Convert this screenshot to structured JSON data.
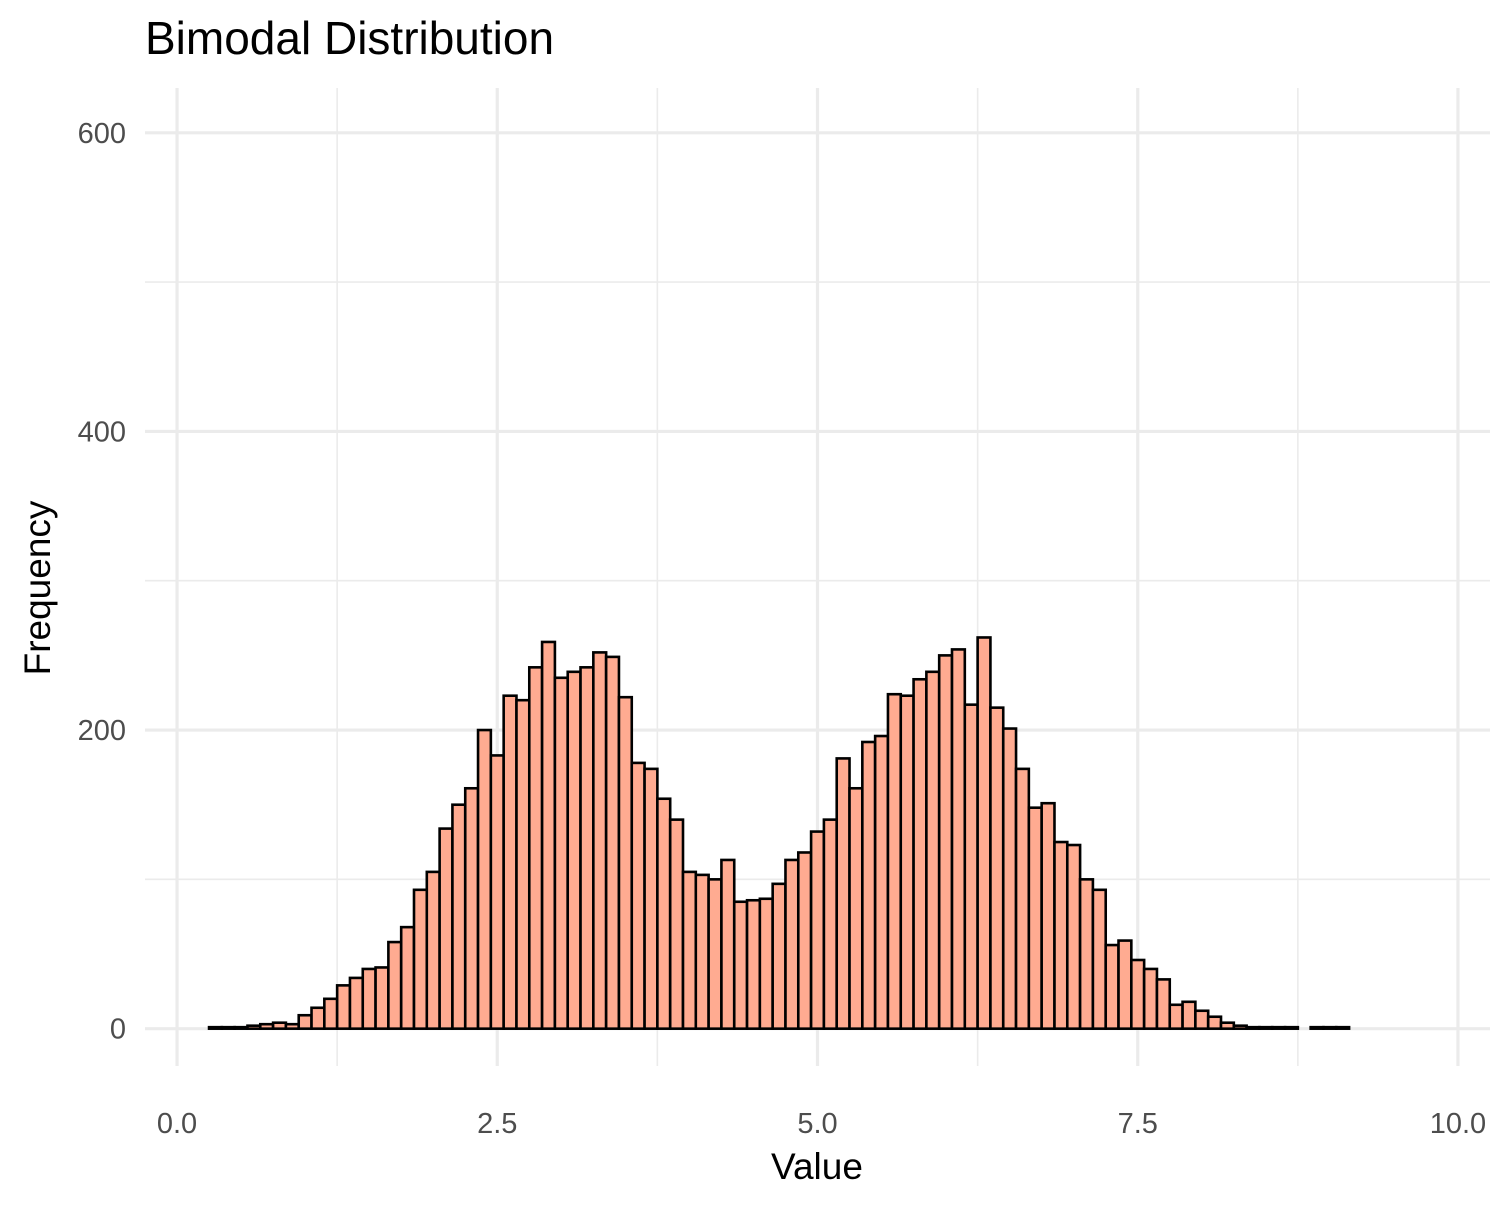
{
  "chart_data": {
    "type": "bar",
    "title": "Bimodal Distribution",
    "xlabel": "Value",
    "ylabel": "Frequency",
    "xlim": [
      -0.25,
      10.25
    ],
    "ylim": [
      -25,
      630
    ],
    "x_ticks": [
      0,
      2.5,
      5,
      7.5,
      10
    ],
    "x_tick_labels": [
      "0.0",
      "2.5",
      "5.0",
      "7.5",
      "10.0"
    ],
    "y_ticks": [
      0,
      200,
      400,
      600
    ],
    "y_tick_labels": [
      "0",
      "200",
      "400",
      "600"
    ],
    "grid": true,
    "bar_color": "#FFAB91",
    "bar_edge_color": "#000000",
    "bin_start": 0.05,
    "bin_width": 0.1,
    "values": [
      0,
      0,
      1,
      1,
      1,
      2,
      3,
      4,
      3,
      9,
      14,
      20,
      29,
      34,
      40,
      41,
      58,
      68,
      93,
      105,
      134,
      150,
      161,
      200,
      183,
      223,
      220,
      242,
      259,
      235,
      239,
      242,
      252,
      249,
      222,
      178,
      174,
      154,
      140,
      105,
      103,
      100,
      113,
      85,
      86,
      87,
      97,
      113,
      118,
      132,
      140,
      181,
      161,
      192,
      196,
      224,
      223,
      234,
      239,
      250,
      254,
      217,
      262,
      215,
      201,
      174,
      148,
      151,
      125,
      123,
      100,
      93,
      56,
      59,
      46,
      40,
      33,
      16,
      18,
      12,
      8,
      4,
      2,
      1,
      1,
      1,
      1,
      0,
      1,
      1,
      1,
      0,
      0,
      0,
      0,
      0,
      0,
      0,
      0
    ]
  }
}
